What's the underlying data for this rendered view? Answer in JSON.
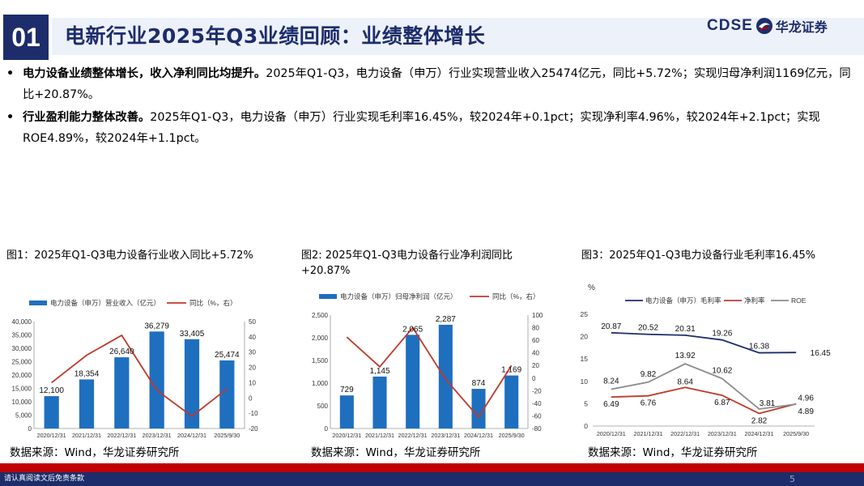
{
  "header": {
    "section_number": "01",
    "title": "电新行业2025年Q3业绩回顾：业绩整体增长",
    "logo_text_en": "CDSE",
    "logo_text_cn": "华龙证券"
  },
  "bullets": [
    {
      "marker": "•",
      "bold": "电力设备业绩整体增长，收入净利同比均提升。",
      "text": "2025年Q1-Q3，电力设备（申万）行业实现营业收入25474亿元，同比+5.72%；实现归母净利润1169亿元，同比+20.87%。"
    },
    {
      "marker": "•",
      "bold": "行业盈利能力整体改善。",
      "text": "2025年Q1-Q3，电力设备（申万）行业实现毛利率16.45%，较2024年+0.1pct；实现净利率4.96%，较2024年+2.1pct；实现ROE4.89%，较2024年+1.1pct。"
    }
  ],
  "figures": {
    "fig1": {
      "caption": "图1：2025年Q1-Q3电力设备行业收入同比+5.72%",
      "source": "数据来源：Wind，华龙证券研究所"
    },
    "fig2": {
      "caption": "图2:  2025年Q1-Q3电力设备行业净利润同比+20.87%",
      "source": "数据来源：Wind，华龙证券研究所"
    },
    "fig3": {
      "caption": "图3：2025年Q1-Q3电力设备行业毛利率16.45%",
      "source": "数据来源：Wind，华龙证券研究所"
    }
  },
  "footer": {
    "disclaimer": "请认真阅读文后免责条款",
    "page": "5"
  },
  "colors": {
    "navy": "#1d2d6b",
    "bar_blue": "#1f6fbf",
    "line_red": "#c0392b",
    "line_gray": "#8c8c8c",
    "footer_red": "#c00000"
  },
  "chart_data": [
    {
      "type": "bar",
      "categories": [
        "2020/12/31",
        "2021/12/31",
        "2022/12/31",
        "2023/12/31",
        "2024/12/31",
        "2025/9/30"
      ],
      "series": [
        {
          "name": "电力设备（申万）营业收入（亿元）",
          "type": "bar",
          "axis": "left",
          "values": [
            12100,
            18354,
            26640,
            36279,
            33405,
            25474
          ],
          "labels": [
            "12,100",
            "18,354",
            "26,640",
            "36,279",
            "33,405",
            "25,474"
          ]
        },
        {
          "name": "同比（%，右）",
          "type": "line",
          "axis": "right",
          "values": [
            10,
            28,
            41,
            5,
            -12,
            6
          ]
        }
      ],
      "left_ticks": [
        "0",
        "5,000",
        "10,000",
        "15,000",
        "20,000",
        "25,000",
        "30,000",
        "35,000",
        "40,000"
      ],
      "right_ticks": [
        "-20",
        "-10",
        "0",
        "10",
        "20",
        "30",
        "40",
        "50"
      ],
      "ylim": [
        0,
        40000
      ],
      "y2lim": [
        -20,
        50
      ]
    },
    {
      "type": "bar",
      "categories": [
        "2020/12/31",
        "2021/12/31",
        "2022/12/31",
        "2023/12/31",
        "2024/12/31",
        "2025/9/30"
      ],
      "series": [
        {
          "name": "电力设备（申万）归母净利润（亿元）",
          "type": "bar",
          "axis": "left",
          "values": [
            729,
            1145,
            2065,
            2287,
            874,
            1169
          ],
          "labels": [
            "729",
            "1,145",
            "2,065",
            "2,287",
            "874",
            "1,169"
          ]
        },
        {
          "name": "同比（%，右）",
          "type": "line",
          "axis": "right",
          "values": [
            65,
            18,
            80,
            -2,
            -62,
            20
          ]
        }
      ],
      "left_ticks": [
        "0",
        "500",
        "1,000",
        "1,500",
        "2,000",
        "2,500"
      ],
      "right_ticks": [
        "-80",
        "-60",
        "-40",
        "-20",
        "0",
        "20",
        "40",
        "60",
        "80",
        "100"
      ],
      "ylim": [
        0,
        2500
      ],
      "y2lim": [
        -80,
        100
      ]
    },
    {
      "type": "line",
      "ylabel": "%",
      "categories": [
        "2020/12/31",
        "2021/12/31",
        "2022/12/31",
        "2023/12/31",
        "2024/12/31",
        "2025/9/30"
      ],
      "series": [
        {
          "name": "电力设备（申万）毛利率",
          "values": [
            20.87,
            20.52,
            20.31,
            19.26,
            16.38,
            16.45
          ],
          "labels": [
            "20.87",
            "20.52",
            "20.31",
            "19.26",
            "16.38",
            "16.45"
          ]
        },
        {
          "name": "净利率",
          "values": [
            6.49,
            6.76,
            8.64,
            6.87,
            2.82,
            4.96
          ],
          "labels": [
            "6.49",
            "6.76",
            "8.64",
            "6.87",
            "2.82",
            "4.96"
          ]
        },
        {
          "name": "ROE",
          "values": [
            8.24,
            9.82,
            13.92,
            10.62,
            3.81,
            4.89
          ],
          "labels": [
            "8.24",
            "9.82",
            "13.92",
            "10.62",
            "3.81",
            "4.89"
          ]
        }
      ],
      "left_ticks": [
        "0",
        "5",
        "10",
        "15",
        "20",
        "25"
      ],
      "ylim": [
        0,
        25
      ]
    }
  ]
}
